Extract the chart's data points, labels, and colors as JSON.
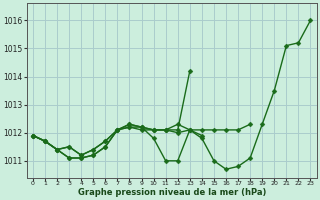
{
  "xlabel": "Graphe pression niveau de la mer (hPa)",
  "ylabel": "",
  "bg_color": "#cceedd",
  "grid_color": "#aacccc",
  "line_color": "#1a6b1a",
  "xlim": [
    -0.5,
    23.5
  ],
  "ylim": [
    1010.4,
    1016.6
  ],
  "yticks": [
    1011,
    1012,
    1013,
    1014,
    1015,
    1016
  ],
  "xticks": [
    0,
    1,
    2,
    3,
    4,
    5,
    6,
    7,
    8,
    9,
    10,
    11,
    12,
    13,
    14,
    15,
    16,
    17,
    18,
    19,
    20,
    21,
    22,
    23
  ],
  "series": [
    [
      1011.9,
      1011.7,
      1011.4,
      1011.1,
      1011.1,
      1011.2,
      1011.5,
      1012.1,
      1012.2,
      1012.1,
      1012.1,
      1012.1,
      1012.0,
      1012.1,
      1011.8,
      1011.0,
      1010.7,
      1010.8,
      1011.1,
      1012.3,
      1013.5,
      1015.1,
      1015.2,
      1016.0
    ],
    [
      1011.9,
      1011.7,
      1011.4,
      1011.1,
      1011.1,
      1011.2,
      1011.5,
      1012.1,
      1012.3,
      1012.2,
      1011.8,
      1011.0,
      1011.0,
      1012.1,
      1011.9
    ],
    [
      1011.9,
      1011.7,
      1011.4,
      1011.5,
      1011.2,
      1011.4,
      1011.7,
      1012.1,
      1012.3,
      1012.2,
      1012.1,
      1012.1,
      1012.1,
      1014.2
    ],
    [
      1011.9,
      1011.7,
      1011.4,
      1011.5,
      1011.2,
      1011.4,
      1011.7,
      1012.1,
      1012.2,
      1012.2,
      1012.1,
      1012.1,
      1012.3,
      1012.1,
      1012.1,
      1012.1,
      1012.1,
      1012.1,
      1012.3
    ]
  ],
  "marker_size": 2.5,
  "line_width": 1.0
}
